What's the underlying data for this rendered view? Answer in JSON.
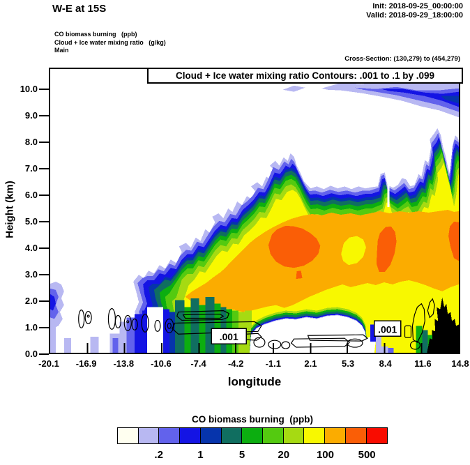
{
  "header": {
    "title": "W-E at 15S",
    "init": "Init: 2018-09-25_00:00:00",
    "valid": "Valid: 2018-09-29_18:00:00"
  },
  "field_labels": {
    "line1": "CO biomass burning   (ppb)",
    "line2": "Cloud + Ice water mixing ratio   (g/kg)",
    "line3": "Main"
  },
  "cross_section_note": "Cross-Section: (130,279) to (454,279)",
  "plot": {
    "contour_note": "Cloud + Ice water mixing ratio Contours: .001 to .1 by .099",
    "contour_labels": [
      ".001",
      ".001"
    ],
    "y_axis": {
      "label": "Height (km)",
      "ticks": [
        "0.0",
        "1.0",
        "2.0",
        "3.0",
        "4.0",
        "5.0",
        "6.0",
        "7.0",
        "8.0",
        "9.0",
        "10.0"
      ]
    },
    "x_axis": {
      "label": "longitude",
      "ticks": [
        "-20.1",
        "-16.9",
        "-13.8",
        "-10.6",
        "-7.4",
        "-4.2",
        "-1.1",
        "2.1",
        "5.3",
        "8.4",
        "11.6",
        "14.8"
      ]
    }
  },
  "colorbar": {
    "title": "CO biomass burning  (ppb)",
    "tick_labels": [
      ".2",
      "1",
      "5",
      "20",
      "100",
      "500"
    ],
    "colors": [
      "#FFFFF0",
      "#B8B8F2",
      "#6262EC",
      "#1414E4",
      "#0634AC",
      "#106E60",
      "#0CAE10",
      "#54CA10",
      "#A6DA12",
      "#F8F800",
      "#FBAC00",
      "#FA5E06",
      "#F90C00"
    ]
  },
  "chart_data": {
    "type": "heatmap",
    "title": "W-E at 15S",
    "shaded_field": {
      "name": "CO biomass burning",
      "units": "ppb",
      "level_edges": [
        0.1,
        0.2,
        0.5,
        1,
        2,
        5,
        10,
        20,
        50,
        100,
        200,
        500
      ],
      "labeled_edges": [
        0.2,
        1,
        5,
        20,
        100,
        500
      ],
      "colors": [
        "#FFFFF0",
        "#B8B8F2",
        "#6262EC",
        "#1414E4",
        "#0634AC",
        "#106E60",
        "#0CAE10",
        "#54CA10",
        "#A6DA12",
        "#F8F800",
        "#FBAC00",
        "#FA5E06",
        "#F90C00"
      ]
    },
    "overlay_contours": {
      "name": "Cloud + Ice water mixing ratio",
      "units": "g/kg",
      "levels": [
        0.001,
        0.1
      ],
      "note": "Contours: .001 to .1 by .099"
    },
    "xlabel": "longitude",
    "ylabel": "Height (km)",
    "x_ticks": [
      -20.1,
      -16.9,
      -13.8,
      -10.6,
      -7.4,
      -4.2,
      -1.1,
      2.1,
      5.3,
      8.4,
      11.6,
      14.8
    ],
    "y_ticks": [
      0,
      1,
      2,
      3,
      4,
      5,
      6,
      7,
      8,
      9,
      10
    ],
    "ylim": [
      0,
      10.8
    ],
    "grid": false,
    "legend_position": "bottom horizontal colorbar",
    "features": [
      "Main elevated smoke plume (>100 ppb, orange) spans roughly lon -5 to 14.8 between ~2 and 6.5 km, with flat top near 6.5 km and spikes to ~8.5 km near lon 12-14",
      "Plume cores >200 ppb (deep orange) near lon -2 to 0 at 3.2-4.8 km, near lon 6-7 at 3.3-4.7 km, and at the right edge ~4 km",
      "Lower-concentration hole (~50-100 ppb, yellow) embedded in the orange core near lon 3-4 at 3.5-4.5 km",
      "Thin elevated layer (0.1-2 ppb, blue/lavender) at 9.5-10.5 km from about lon 2 to 14.8, thickening toward the east edge",
      "Shallow boundary-layer columns (up to 5-20 ppb) below ~2 km between lon -14 and -7 and near lon 11-13",
      "Cloud + ice (.001 g/kg) contour cells confined below ~1.5 km across the section, labeled .001 near lon -5 and lon 8.5",
      "Black terrain silhouette at lower right (lon ~13 to 14.8) reaching ~2 km"
    ]
  }
}
